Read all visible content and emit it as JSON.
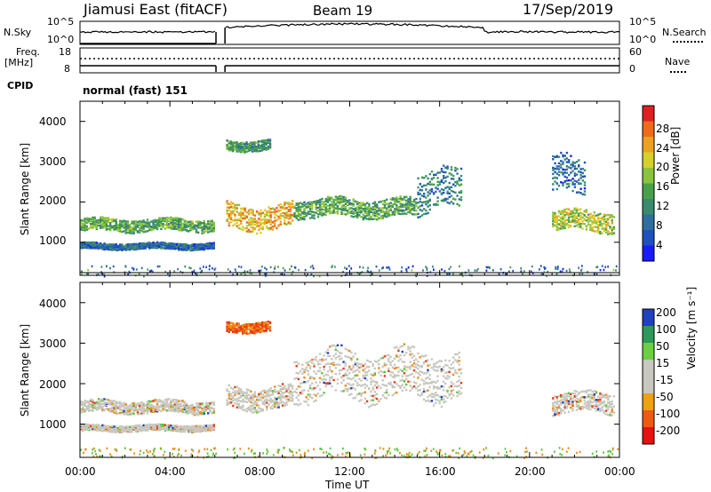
{
  "header": {
    "station": "Jiamusi East (fitACF)",
    "beam": "Beam 19",
    "date": "17/Sep/2019"
  },
  "side_labels": {
    "nsky": "N.Sky",
    "nsearch": "N.Search",
    "freq": "Freq.",
    "freq_unit": "[MHz]",
    "nave": "Nave",
    "cpid": "CPID",
    "cpid_value": "normal (fast) 151"
  },
  "noise_panel": {
    "yticks_left": [
      "10^5",
      "10^0"
    ],
    "yticks_right": [
      "10^5",
      "10^0"
    ]
  },
  "freq_panel": {
    "yticks_left": [
      "18",
      "8"
    ],
    "yticks_right": [
      "60",
      "0"
    ]
  },
  "x_axis": {
    "label": "Time UT",
    "ticks": [
      "00:00",
      "04:00",
      "08:00",
      "12:00",
      "16:00",
      "20:00",
      "00:00"
    ],
    "range_hours": [
      0,
      24
    ]
  },
  "y_axis": {
    "label": "Slant Range [km]",
    "ticks": [
      1000,
      2000,
      3000,
      4000
    ],
    "range_km": [
      180,
      4500
    ]
  },
  "colorbars": {
    "power": {
      "label": "Power [dB]",
      "ticks": [
        "28",
        "24",
        "20",
        "16",
        "12",
        "8",
        "4"
      ]
    },
    "velocity": {
      "label": "Velocity [m s⁻¹]",
      "ticks": [
        "200",
        "100",
        "50",
        "15",
        "-15",
        "-50",
        "-100",
        "-200"
      ]
    }
  },
  "chart_data": [
    {
      "type": "heatmap",
      "title": "Power",
      "xlabel": "",
      "ylabel": "Slant Range [km]",
      "xlim": [
        0,
        24
      ],
      "ylim": [
        180,
        4500
      ],
      "colorbar_label": "Power [dB]",
      "colorbar_range": [
        0,
        30
      ],
      "data_gap_hours": [
        6.05,
        6.45
      ],
      "echo_bands": [
        {
          "t": [
            0.0,
            6.0
          ],
          "range_km": [
            1300,
            1600
          ],
          "power_db": 12
        },
        {
          "t": [
            0.0,
            6.0
          ],
          "range_km": [
            850,
            1000
          ],
          "power_db": 6
        },
        {
          "t": [
            6.5,
            9.5
          ],
          "range_km": [
            1350,
            1950
          ],
          "power_db": 20
        },
        {
          "t": [
            6.5,
            8.5
          ],
          "range_km": [
            3300,
            3550
          ],
          "power_db": 10
        },
        {
          "t": [
            9.5,
            15.0
          ],
          "range_km": [
            1650,
            2100
          ],
          "power_db": 12
        },
        {
          "t": [
            15.0,
            17.0
          ],
          "range_km": [
            1800,
            2800
          ],
          "power_db": 8
        },
        {
          "t": [
            21.0,
            23.8
          ],
          "range_km": [
            1300,
            1800
          ],
          "power_db": 16
        },
        {
          "t": [
            21.0,
            22.5
          ],
          "range_km": [
            2200,
            3100
          ],
          "power_db": 6
        }
      ]
    },
    {
      "type": "heatmap",
      "title": "Velocity",
      "xlabel": "Time UT",
      "ylabel": "Slant Range [km]",
      "xlim": [
        0,
        24
      ],
      "ylim": [
        180,
        4500
      ],
      "colorbar_label": "Velocity [m s⁻¹]",
      "colorbar_range": [
        -200,
        200
      ],
      "dominant_velocity": "-15 to 15 (ground scatter, grey)",
      "echo_bands": [
        {
          "t": [
            0.0,
            6.0
          ],
          "range_km": [
            1300,
            1600
          ],
          "velocity": 0
        },
        {
          "t": [
            0.0,
            6.0
          ],
          "range_km": [
            850,
            1000
          ],
          "velocity": 0
        },
        {
          "t": [
            6.5,
            9.5
          ],
          "range_km": [
            1400,
            1950
          ],
          "velocity": -30
        },
        {
          "t": [
            6.5,
            8.5
          ],
          "range_km": [
            3300,
            3550
          ],
          "velocity": -80
        },
        {
          "t": [
            9.5,
            17.0
          ],
          "range_km": [
            1650,
            2800
          ],
          "velocity": 0
        },
        {
          "t": [
            21.0,
            23.8
          ],
          "range_km": [
            1300,
            1800
          ],
          "velocity": 0
        }
      ]
    }
  ]
}
